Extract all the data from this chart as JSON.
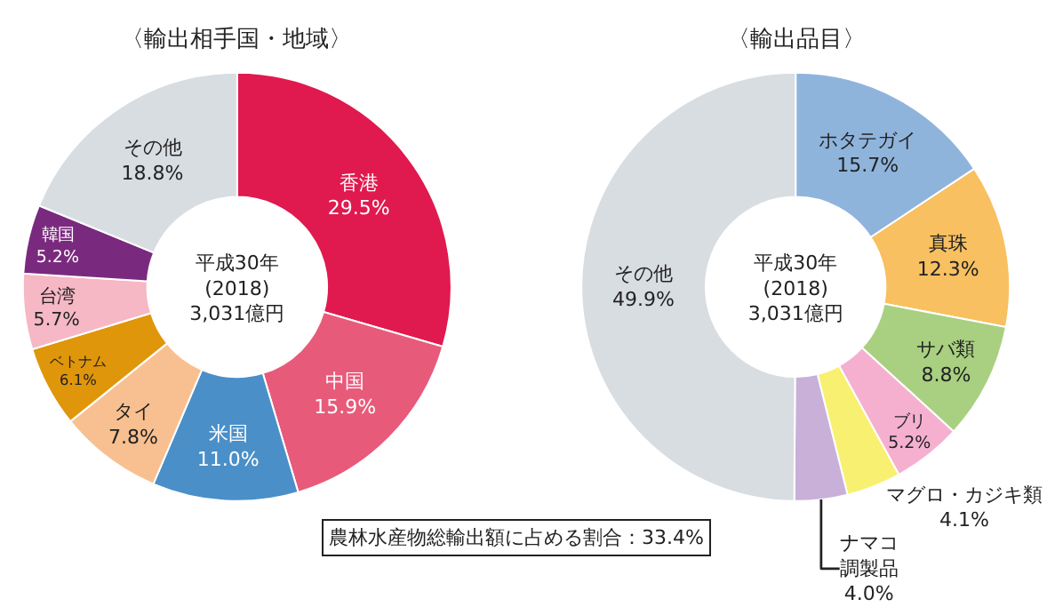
{
  "chart_data": [
    {
      "type": "donut",
      "title": "〈輸出相手国・地域〉",
      "categories": [
        "香港",
        "中国",
        "米国",
        "タイ",
        "ベトナム",
        "台湾",
        "韓国",
        "その他"
      ],
      "values": [
        29.5,
        15.9,
        11.0,
        7.8,
        6.1,
        5.7,
        5.2,
        18.8
      ],
      "value_labels": [
        "29.5%",
        "15.9%",
        "11.0%",
        "7.8%",
        "6.1%",
        "5.7%",
        "5.2%",
        "18.8%"
      ],
      "colors": [
        "#e0194f",
        "#e85a7a",
        "#4a8fc8",
        "#f8c090",
        "#e0960a",
        "#f5b8c4",
        "#7a2a7e",
        "#d8dde2"
      ],
      "legend": false,
      "annotations": [
        "平成30年\n(2018)\n3,031億円",
        "農林水産物総輸出額に占める割合：33.4%"
      ]
    },
    {
      "type": "donut",
      "title": "〈輸出品目〉",
      "categories": [
        "ホタテガイ",
        "真珠",
        "サバ類",
        "ブリ",
        "マグロ・カジキ類",
        "ナマコ調製品",
        "その他"
      ],
      "values": [
        15.7,
        12.3,
        8.8,
        5.2,
        4.1,
        4.0,
        49.9
      ],
      "value_labels": [
        "15.7%",
        "12.3%",
        "8.8%",
        "5.2%",
        "4.1%",
        "4.0%",
        "49.9%"
      ],
      "colors": [
        "#8fb4dc",
        "#f8c060",
        "#a8d080",
        "#f5b0d0",
        "#f8f070",
        "#c8b0d8",
        "#d8dde2"
      ],
      "legend": false,
      "annotations": [
        "平成30年\n(2018)\n3,031億円"
      ]
    }
  ]
}
